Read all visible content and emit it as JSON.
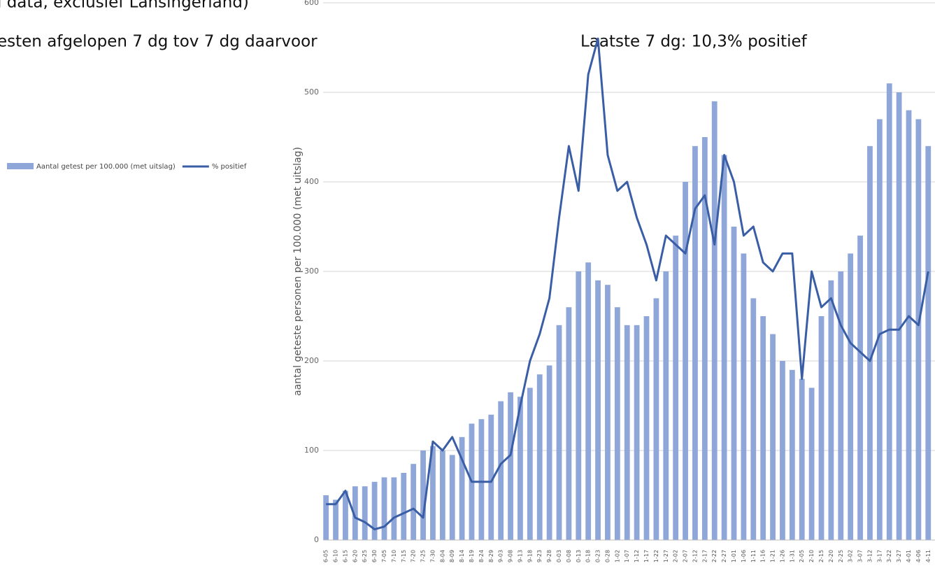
{
  "chart_data": {
    "type": "bar",
    "title": "l data, exclusief Lansingerland)",
    "subtitle": "esten afgelopen 7 dg tov 7 dg daarvoor",
    "annotation": "Laatste 7 dg: 10,3% positief",
    "ylabel": "aantal geteste personen per 100.000 (met uitslag)",
    "categories": [
      "6-05",
      "6-10",
      "6-15",
      "6-20",
      "6-25",
      "6-30",
      "7-05",
      "7-10",
      "7-15",
      "7-20",
      "7-25",
      "7-30",
      "8-04",
      "8-09",
      "8-14",
      "8-19",
      "8-24",
      "8-29",
      "9-03",
      "9-08",
      "9-13",
      "9-18",
      "9-23",
      "9-28",
      "0-03",
      "0-08",
      "0-13",
      "0-18",
      "0-23",
      "0-28",
      "1-02",
      "1-07",
      "1-12",
      "1-17",
      "1-22",
      "1-27",
      "2-02",
      "2-07",
      "2-12",
      "2-17",
      "2-22",
      "2-27",
      "1-01",
      "1-06",
      "1-11",
      "1-16",
      "1-21",
      "1-26",
      "1-31",
      "2-05",
      "2-10",
      "2-15",
      "2-20",
      "2-25",
      "3-02",
      "3-07",
      "3-12",
      "3-17",
      "3-22",
      "3-27",
      "4-01",
      "4-06",
      "4-11"
    ],
    "series": [
      {
        "name": "Aantal getest per 100.000 (met uitslag)",
        "type": "bar",
        "color": "#8fa6d8",
        "values": [
          50,
          45,
          55,
          60,
          60,
          65,
          70,
          70,
          75,
          85,
          100,
          105,
          100,
          95,
          115,
          130,
          135,
          140,
          155,
          165,
          160,
          170,
          185,
          195,
          240,
          260,
          300,
          310,
          290,
          285,
          260,
          240,
          240,
          250,
          270,
          300,
          340,
          400,
          440,
          450,
          490,
          430,
          350,
          320,
          270,
          250,
          230,
          200,
          190,
          180,
          170,
          250,
          290,
          300,
          320,
          340,
          440,
          470,
          510,
          500,
          480,
          470,
          440
        ]
      },
      {
        "name": "% positief",
        "type": "line",
        "color": "#3a5ea6",
        "values": [
          40,
          40,
          55,
          25,
          20,
          12,
          15,
          25,
          30,
          35,
          25,
          110,
          100,
          115,
          90,
          65,
          65,
          65,
          85,
          95,
          150,
          200,
          230,
          270,
          360,
          440,
          390,
          520,
          560,
          430,
          390,
          400,
          360,
          330,
          290,
          340,
          330,
          320,
          370,
          385,
          330,
          430,
          400,
          340,
          350,
          310,
          300,
          320,
          320,
          180,
          300,
          260,
          270,
          240,
          220,
          210,
          200,
          230,
          235,
          235,
          250,
          240,
          300
        ]
      }
    ],
    "ylim": [
      0,
      600
    ],
    "yticks": [
      0,
      100,
      200,
      300,
      400,
      500,
      600
    ],
    "grid": true
  }
}
